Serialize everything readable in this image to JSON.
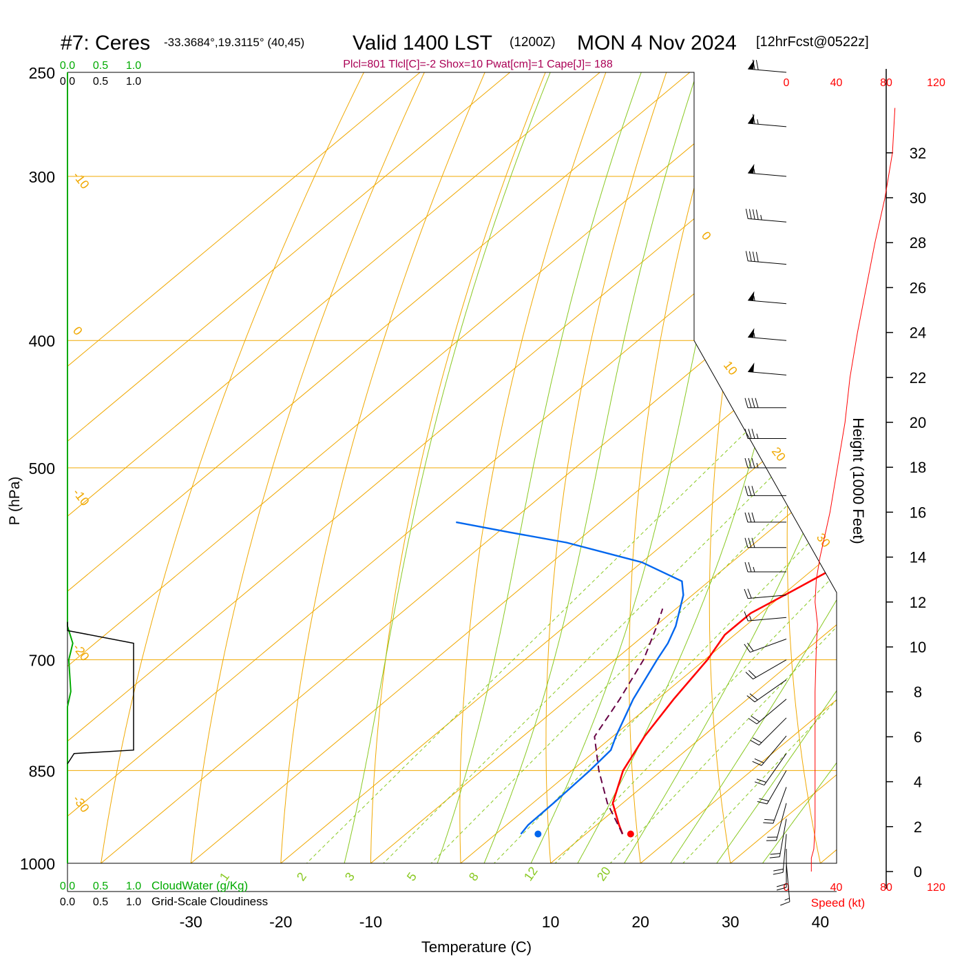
{
  "header": {
    "station": "#7: Ceres",
    "coords": "-33.3684°,19.3115° (40,45)",
    "valid": "Valid 1400 LST",
    "zulu": "(1200Z)",
    "date": "MON 4 Nov 2024",
    "forecast": "[12hrFcst@0522z]"
  },
  "indices": "Plcl=801 Tlcl[C]=-2 Shox=10 Pwat[cm]=1 Cape[J]= 188",
  "colors": {
    "temperature": "#ff0000",
    "dewpoint": "#0066ee",
    "parcel": "#660044",
    "isotherm": "#f0a800",
    "moist_adiabat": "#88c820",
    "mixing_ratio": "#88c820",
    "cloud_water": "#00aa00",
    "indices_text": "#aa0055"
  },
  "chart_data": {
    "type": "line",
    "diagram": "skew-T log-P",
    "xlabel": "Temperature (C)",
    "ylabel": "P (hPa)",
    "x_ticks": [
      "-30",
      "-20",
      "-10",
      "10",
      "20",
      "30",
      "40"
    ],
    "x_tick_values": [
      -30,
      -20,
      -10,
      10,
      20,
      30,
      40
    ],
    "pressure_ticks": [
      "250",
      "300",
      "400",
      "500",
      "700",
      "850",
      "1000"
    ],
    "pressure_values": [
      250,
      300,
      400,
      500,
      700,
      850,
      1000
    ],
    "height_label": "Height (1000 Feet)",
    "height_ticks": [
      "0",
      "2",
      "4",
      "6",
      "8",
      "10",
      "12",
      "14",
      "16",
      "18",
      "20",
      "22",
      "24",
      "26",
      "28",
      "30",
      "32"
    ],
    "speed_label": "Speed (kt)",
    "speed_ticks": [
      "0",
      "40",
      "80",
      "120"
    ],
    "isotherm_labels": [
      {
        "text": "-10",
        "temp": -10
      },
      {
        "text": "0",
        "temp": 0
      },
      {
        "text": "-10",
        "temp": -10
      },
      {
        "text": "-20",
        "temp": -20
      },
      {
        "text": "-30",
        "temp": -30
      },
      {
        "text": "0",
        "temp": 0
      },
      {
        "text": "10",
        "temp": 10
      },
      {
        "text": "20",
        "temp": 20
      },
      {
        "text": "30",
        "temp": 30
      }
    ],
    "mixing_ratio_labels": [
      "1",
      "2",
      "3",
      "5",
      "8",
      "12",
      "20"
    ],
    "cloud_scales": {
      "cloud_water_ticks": [
        "0.0",
        "0.5",
        "1.0"
      ],
      "cloud_water_label": "CloudWater (g/Kg)",
      "cloudiness_ticks": [
        "0.0",
        "0.5",
        "1.0"
      ],
      "cloudiness_label": "Grid-Scale Cloudiness"
    },
    "series": [
      {
        "key": "temperature",
        "points": [
          [
            950,
            14.1
          ],
          [
            935,
            12.5
          ],
          [
            900,
            8.9
          ],
          [
            850,
            5.7
          ],
          [
            800,
            3.5
          ],
          [
            750,
            1.8
          ],
          [
            700,
            0.3
          ],
          [
            670,
            -1.1
          ],
          [
            645,
            -1.1
          ],
          [
            620,
            0.6
          ],
          [
            580,
            3.3
          ],
          [
            550,
            4.5
          ],
          [
            520,
            5.3
          ],
          [
            500,
            5.0
          ],
          [
            470,
            4.6
          ],
          [
            440,
            3.6
          ],
          [
            410,
            2.4
          ],
          [
            380,
            1.2
          ],
          [
            350,
            0.2
          ],
          [
            330,
            0.0
          ],
          [
            310,
            0.3
          ],
          [
            290,
            1.2
          ],
          [
            270,
            2.2
          ],
          [
            250,
            2.8
          ]
        ]
      },
      {
        "key": "dewpoint",
        "points": [
          [
            950,
            2.8
          ],
          [
            935,
            2.4
          ],
          [
            900,
            2.3
          ],
          [
            850,
            2.0
          ],
          [
            820,
            1.6
          ],
          [
            800,
            0.3
          ],
          [
            750,
            -2.7
          ],
          [
            700,
            -5.3
          ],
          [
            680,
            -6.3
          ],
          [
            660,
            -7.7
          ],
          [
            625,
            -11.0
          ],
          [
            610,
            -13.0
          ],
          [
            590,
            -20.0
          ],
          [
            570,
            -31.0
          ],
          [
            560,
            -38.6
          ],
          [
            550,
            -46.0
          ]
        ]
      },
      {
        "key": "dewpoint_upper",
        "points": [
          [
            250,
            -43.0
          ],
          [
            260,
            -42.5
          ],
          [
            280,
            -42.3
          ],
          [
            300,
            -43.3
          ]
        ]
      },
      {
        "key": "parcel",
        "points": [
          [
            950,
            14.1
          ],
          [
            900,
            8.3
          ],
          [
            850,
            3.0
          ],
          [
            801,
            -2.0
          ],
          [
            750,
            -4.2
          ],
          [
            700,
            -6.8
          ],
          [
            660,
            -9.8
          ],
          [
            640,
            -11.5
          ]
        ]
      }
    ],
    "surface": {
      "temperature": 15.0,
      "dewpoint": 4.7,
      "pressure": 950
    },
    "cloud_water": [
      [
        1000,
        0.0
      ],
      [
        760,
        0.0
      ],
      [
        740,
        0.05
      ],
      [
        700,
        0.02
      ],
      [
        680,
        0.08
      ],
      [
        660,
        0.0
      ],
      [
        250,
        0.0
      ]
    ],
    "cloudiness": [
      [
        840,
        0.0
      ],
      [
        825,
        0.1
      ],
      [
        820,
        1.0
      ],
      [
        680,
        1.0
      ],
      [
        665,
        0.0
      ],
      [
        655,
        0.0
      ]
    ],
    "wind": {
      "speed_profile": [
        [
          0,
          20
        ],
        [
          0.6,
          20
        ],
        [
          1,
          22
        ],
        [
          2,
          23
        ],
        [
          4,
          23
        ],
        [
          6,
          23
        ],
        [
          8,
          23
        ],
        [
          10,
          24
        ],
        [
          11,
          25
        ],
        [
          11.5,
          24
        ],
        [
          12,
          23
        ],
        [
          13,
          24
        ],
        [
          14,
          27
        ],
        [
          15,
          31
        ],
        [
          16,
          35
        ],
        [
          18,
          41
        ],
        [
          20,
          47
        ],
        [
          22,
          51
        ],
        [
          24,
          57
        ],
        [
          26,
          64
        ],
        [
          28,
          71
        ],
        [
          30,
          79
        ],
        [
          32,
          85
        ],
        [
          33,
          86
        ],
        [
          34,
          87
        ]
      ],
      "barbs": [
        {
          "p": 250,
          "speed": 70,
          "dir": 275
        },
        {
          "p": 275,
          "speed": 65,
          "dir": 275
        },
        {
          "p": 300,
          "speed": 55,
          "dir": 275
        },
        {
          "p": 325,
          "speed": 45,
          "dir": 275
        },
        {
          "p": 350,
          "speed": 40,
          "dir": 275
        },
        {
          "p": 375,
          "speed": 55,
          "dir": 275
        },
        {
          "p": 400,
          "speed": 55,
          "dir": 275
        },
        {
          "p": 425,
          "speed": 50,
          "dir": 275
        },
        {
          "p": 450,
          "speed": 40,
          "dir": 270
        },
        {
          "p": 475,
          "speed": 35,
          "dir": 270
        },
        {
          "p": 500,
          "speed": 35,
          "dir": 270
        },
        {
          "p": 525,
          "speed": 30,
          "dir": 270
        },
        {
          "p": 550,
          "speed": 30,
          "dir": 270
        },
        {
          "p": 575,
          "speed": 30,
          "dir": 270
        },
        {
          "p": 600,
          "speed": 25,
          "dir": 270
        },
        {
          "p": 625,
          "speed": 20,
          "dir": 265
        },
        {
          "p": 650,
          "speed": 15,
          "dir": 265
        },
        {
          "p": 675,
          "speed": 20,
          "dir": 250
        },
        {
          "p": 700,
          "speed": 20,
          "dir": 240
        },
        {
          "p": 725,
          "speed": 20,
          "dir": 235
        },
        {
          "p": 750,
          "speed": 20,
          "dir": 230
        },
        {
          "p": 775,
          "speed": 20,
          "dir": 225
        },
        {
          "p": 800,
          "speed": 20,
          "dir": 220
        },
        {
          "p": 825,
          "speed": 20,
          "dir": 215
        },
        {
          "p": 850,
          "speed": 20,
          "dir": 210
        },
        {
          "p": 875,
          "speed": 20,
          "dir": 200
        },
        {
          "p": 900,
          "speed": 20,
          "dir": 195
        },
        {
          "p": 925,
          "speed": 20,
          "dir": 190
        },
        {
          "p": 950,
          "speed": 20,
          "dir": 185
        },
        {
          "p": 975,
          "speed": 20,
          "dir": 180
        },
        {
          "p": 1000,
          "speed": 15,
          "dir": 175
        }
      ]
    }
  }
}
